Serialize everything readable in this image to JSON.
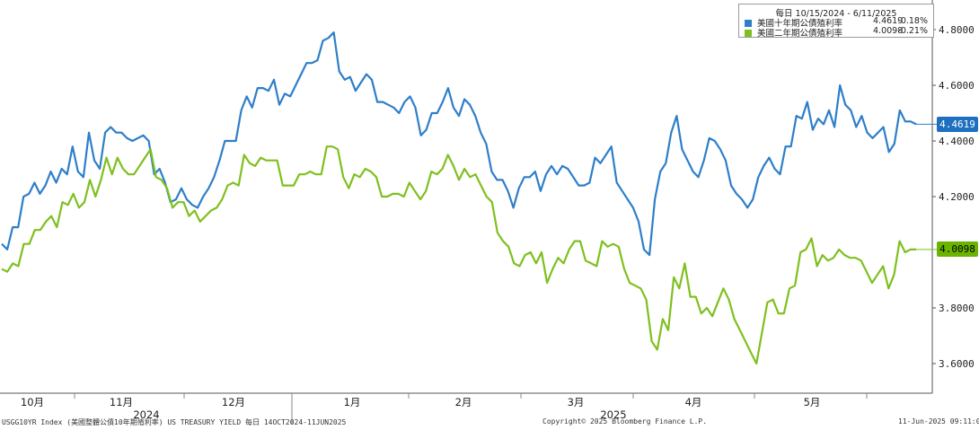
{
  "chart_data": {
    "type": "line",
    "frequency": "每日",
    "date_range": "10/15/2024 - 6/11/2025",
    "x_labels": [
      "10月",
      "11月",
      "12月",
      "1月",
      "2月",
      "3月",
      "4月",
      "5月"
    ],
    "year_labels": [
      "2024",
      "2025"
    ],
    "ylim": [
      3.5,
      4.92
    ],
    "yticks": [
      "4.8000",
      "4.6000",
      "4.4000",
      "4.2000",
      "3.8000",
      "3.6000"
    ],
    "ytick_values": [
      4.8,
      4.6,
      4.4,
      4.2,
      3.8,
      3.6
    ],
    "grid": false,
    "legend_position": "top-right",
    "series": [
      {
        "name": "美國十年期公債殖利率",
        "last": "4.4619",
        "change": "-0.18%",
        "color": "#2e7ec9",
        "tag_color": "#1f6fc0",
        "values": [
          4.03,
          4.01,
          4.09,
          4.09,
          4.2,
          4.21,
          4.25,
          4.21,
          4.24,
          4.29,
          4.25,
          4.3,
          4.28,
          4.38,
          4.29,
          4.27,
          4.43,
          4.33,
          4.3,
          4.43,
          4.45,
          4.43,
          4.43,
          4.41,
          4.4,
          4.41,
          4.42,
          4.4,
          4.28,
          4.3,
          4.25,
          4.18,
          4.19,
          4.23,
          4.19,
          4.17,
          4.16,
          4.2,
          4.23,
          4.27,
          4.33,
          4.4,
          4.4,
          4.4,
          4.51,
          4.56,
          4.52,
          4.59,
          4.59,
          4.58,
          4.62,
          4.53,
          4.57,
          4.56,
          4.6,
          4.64,
          4.68,
          4.68,
          4.69,
          4.76,
          4.77,
          4.79,
          4.65,
          4.62,
          4.63,
          4.58,
          4.61,
          4.64,
          4.62,
          4.54,
          4.54,
          4.53,
          4.52,
          4.5,
          4.54,
          4.56,
          4.52,
          4.42,
          4.44,
          4.5,
          4.5,
          4.54,
          4.59,
          4.52,
          4.49,
          4.55,
          4.53,
          4.49,
          4.43,
          4.39,
          4.29,
          4.26,
          4.26,
          4.22,
          4.16,
          4.23,
          4.27,
          4.27,
          4.29,
          4.22,
          4.28,
          4.31,
          4.28,
          4.31,
          4.3,
          4.27,
          4.24,
          4.24,
          4.25,
          4.34,
          4.32,
          4.35,
          4.38,
          4.25,
          4.22,
          4.19,
          4.16,
          4.11,
          4.01,
          3.99,
          4.19,
          4.29,
          4.32,
          4.43,
          4.49,
          4.37,
          4.33,
          4.29,
          4.27,
          4.33,
          4.41,
          4.4,
          4.37,
          4.33,
          4.24,
          4.21,
          4.19,
          4.16,
          4.19,
          4.27,
          4.31,
          4.34,
          4.3,
          4.28,
          4.38,
          4.38,
          4.49,
          4.48,
          4.54,
          4.44,
          4.48,
          4.46,
          4.51,
          4.45,
          4.6,
          4.53,
          4.51,
          4.45,
          4.49,
          4.43,
          4.41,
          4.43,
          4.45,
          4.36,
          4.39,
          4.51,
          4.47,
          4.47,
          4.46
        ]
      },
      {
        "name": "美國二年期公債殖利率",
        "last": "4.0098",
        "change": "-0.21%",
        "color": "#7ec01e",
        "tag_color": "#6ab400",
        "values": [
          3.94,
          3.93,
          3.96,
          3.95,
          4.03,
          4.03,
          4.08,
          4.08,
          4.11,
          4.13,
          4.09,
          4.18,
          4.17,
          4.21,
          4.16,
          4.18,
          4.26,
          4.2,
          4.26,
          4.34,
          4.28,
          4.34,
          4.3,
          4.28,
          4.28,
          4.31,
          4.34,
          4.37,
          4.27,
          4.26,
          4.23,
          4.16,
          4.18,
          4.18,
          4.13,
          4.15,
          4.11,
          4.13,
          4.15,
          4.16,
          4.19,
          4.24,
          4.25,
          4.24,
          4.35,
          4.32,
          4.31,
          4.34,
          4.33,
          4.33,
          4.33,
          4.24,
          4.24,
          4.24,
          4.28,
          4.28,
          4.29,
          4.28,
          4.28,
          4.38,
          4.38,
          4.37,
          4.27,
          4.23,
          4.28,
          4.27,
          4.3,
          4.29,
          4.27,
          4.2,
          4.2,
          4.21,
          4.21,
          4.2,
          4.25,
          4.22,
          4.19,
          4.22,
          4.29,
          4.28,
          4.3,
          4.35,
          4.31,
          4.26,
          4.3,
          4.27,
          4.28,
          4.24,
          4.2,
          4.18,
          4.07,
          4.04,
          4.02,
          3.96,
          3.95,
          3.99,
          4.0,
          3.96,
          4.0,
          3.89,
          3.94,
          3.98,
          3.96,
          4.01,
          4.04,
          4.04,
          3.97,
          3.96,
          3.95,
          4.04,
          4.02,
          4.03,
          4.02,
          3.94,
          3.89,
          3.88,
          3.87,
          3.83,
          3.68,
          3.65,
          3.76,
          3.72,
          3.91,
          3.87,
          3.96,
          3.84,
          3.84,
          3.78,
          3.8,
          3.77,
          3.82,
          3.87,
          3.83,
          3.76,
          3.72,
          3.68,
          3.64,
          3.6,
          3.71,
          3.82,
          3.83,
          3.78,
          3.78,
          3.87,
          3.88,
          4.0,
          4.01,
          4.05,
          3.95,
          3.99,
          3.97,
          3.98,
          4.01,
          3.99,
          3.98,
          3.98,
          3.97,
          3.93,
          3.89,
          3.92,
          3.95,
          3.87,
          3.92,
          4.04,
          4.0,
          4.01,
          4.01
        ]
      }
    ]
  },
  "footer": {
    "left": "USGG10YR Index (美國整體公債10年期殖利率) US TREASURY YIELD  每日 14OCT2024-11JUN2025",
    "center": "Copyright© 2025 Bloomberg Finance L.P.",
    "right": "11-Jun-2025 09:11:06"
  }
}
